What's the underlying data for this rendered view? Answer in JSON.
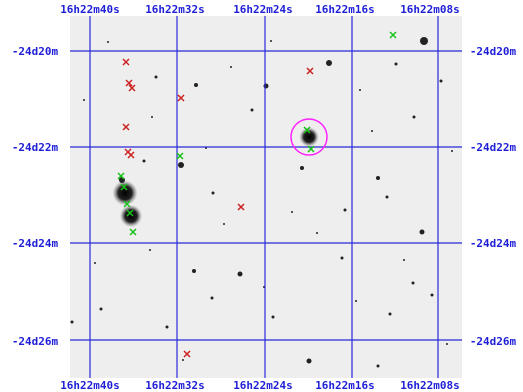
{
  "grid": {
    "color": "#2a2ad6",
    "ra_labels": [
      "16h22m40s",
      "16h22m32s",
      "16h22m24s",
      "16h22m16s",
      "16h22m08s"
    ],
    "dec_labels": [
      "-24d20m",
      "-24d22m",
      "-24d24m",
      "-24d26m"
    ]
  },
  "markers": {
    "green_color": "#18c418",
    "red_color": "#cc2222",
    "circle_color": "#ff22ff"
  }
}
